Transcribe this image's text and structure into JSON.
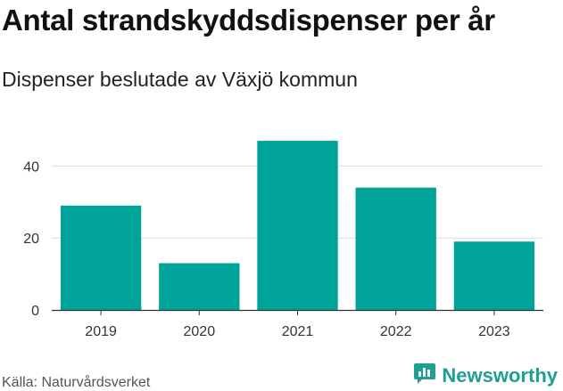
{
  "title": "Antal strandskyddsdispenser per år",
  "subtitle": "Dispenser beslutade av Växjö kommun",
  "source": "Källa: Naturvårdsverket",
  "brand": {
    "name": "Newsworthy",
    "icon": "newsworthy-logo-icon",
    "color": "#1f9f92"
  },
  "colors": {
    "bar": "#00a398",
    "grid": "#dddddd",
    "axis": "#333333"
  },
  "chart_data": {
    "type": "bar",
    "title": "Antal strandskyddsdispenser per år",
    "subtitle": "Dispenser beslutade av Växjö kommun",
    "categories": [
      "2019",
      "2020",
      "2021",
      "2022",
      "2023"
    ],
    "values": [
      29,
      13,
      47,
      34,
      19
    ],
    "xlabel": "",
    "ylabel": "",
    "ylim": [
      0,
      50
    ],
    "yticks": [
      0,
      20,
      40
    ],
    "grid": true,
    "legend": "none"
  }
}
